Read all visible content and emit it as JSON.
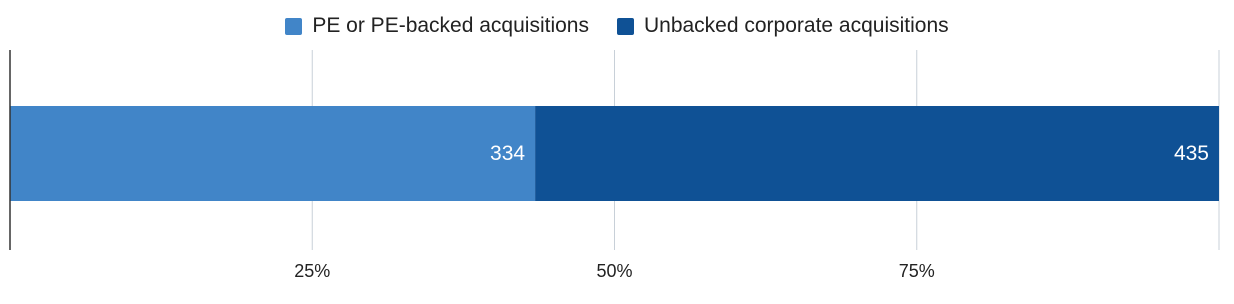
{
  "chart_data": {
    "type": "bar",
    "orientation": "horizontal",
    "stacking": "percent",
    "categories": [
      null
    ],
    "series": [
      {
        "name": "PE or PE-backed acquisitions",
        "color": "#4185c8",
        "values": [
          334
        ]
      },
      {
        "name": "Unbacked corporate acquisitions",
        "color": "#0f5195",
        "values": [
          435
        ]
      }
    ],
    "xlim": [
      0,
      100
    ],
    "xticks": [
      {
        "value": 25,
        "label": "25%"
      },
      {
        "value": 50,
        "label": "50%"
      },
      {
        "value": 75,
        "label": "75%"
      }
    ],
    "grid": true
  }
}
